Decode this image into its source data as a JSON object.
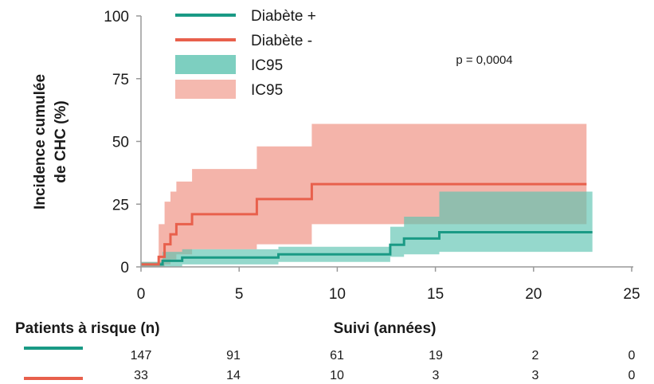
{
  "colors": {
    "diabete_plus": "#1a9a85",
    "diabete_minus": "#e8604c",
    "ci_plus": "#5cc3b0",
    "ci_minus": "#f2a79b",
    "axis": "#999999"
  },
  "chart_data": {
    "type": "line",
    "subtype": "kaplan-meier cumulative incidence",
    "xlabel": "Suivi (années)",
    "ylabel_lines": [
      "Incidence cumulée",
      "de CHC (%)"
    ],
    "xlim": [
      0,
      25
    ],
    "ylim": [
      0,
      100
    ],
    "xticks": [
      0,
      5,
      10,
      15,
      20,
      25
    ],
    "yticks": [
      0,
      25,
      50,
      75,
      100
    ],
    "grid": false,
    "legend_position": "top-center",
    "annotation": "p = 0,0004",
    "legend": [
      {
        "label": "Diabète +",
        "kind": "line",
        "color": "#1a9a85"
      },
      {
        "label": "Diabète -",
        "kind": "line",
        "color": "#e8604c"
      },
      {
        "label": "IC95",
        "kind": "band",
        "color": "#5cc3b0"
      },
      {
        "label": "IC95",
        "kind": "band",
        "color": "#f2a79b"
      }
    ],
    "series": [
      {
        "name": "Diabète +",
        "color": "#1a9a85",
        "band_color": "#5cc3b0",
        "x": [
          0,
          0.8,
          1.1,
          2.1,
          7.0,
          12.7,
          13.4,
          15.2,
          23.0
        ],
        "y": [
          1,
          1,
          2.4,
          3.7,
          5.0,
          8.8,
          11.3,
          13.8,
          13.8
        ],
        "lower": [
          0,
          0,
          0,
          1,
          2,
          4,
          5,
          6,
          6
        ],
        "upper": [
          2,
          2,
          6,
          7,
          8,
          16,
          20,
          30,
          30
        ]
      },
      {
        "name": "Diabète -",
        "color": "#e8604c",
        "band_color": "#f2a79b",
        "x": [
          0,
          0.9,
          1.2,
          1.5,
          1.8,
          2.6,
          5.9,
          8.7,
          22.7
        ],
        "y": [
          1,
          4,
          9,
          13,
          17,
          21,
          27,
          33,
          33
        ],
        "lower": [
          0,
          0,
          1,
          3,
          5,
          7,
          9,
          17,
          17
        ],
        "upper": [
          2,
          17,
          26,
          30,
          34,
          39,
          48,
          57,
          57
        ]
      }
    ],
    "risk_table": {
      "title": "Patients à risque (n)",
      "timepoints": [
        0,
        5,
        10,
        15,
        20,
        25
      ],
      "rows": [
        {
          "name": "Diabète +",
          "color": "#1a9a85",
          "values": [
            147,
            91,
            61,
            19,
            2,
            0
          ]
        },
        {
          "name": "Diabète -",
          "color": "#e8604c",
          "values": [
            33,
            14,
            10,
            3,
            3,
            0
          ]
        }
      ]
    }
  }
}
